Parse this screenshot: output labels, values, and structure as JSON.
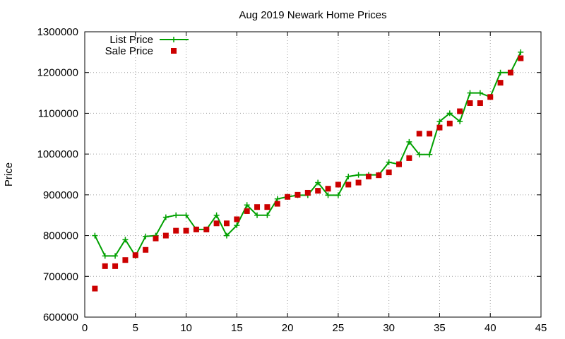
{
  "chart_data": {
    "type": "line",
    "title": "Aug 2019 Newark Home Prices",
    "xlabel": "",
    "ylabel": "Price",
    "xlim": [
      0,
      45
    ],
    "ylim": [
      600000,
      1300000
    ],
    "x_ticks": [
      0,
      5,
      10,
      15,
      20,
      25,
      30,
      35,
      40,
      45
    ],
    "y_ticks": [
      600000,
      700000,
      800000,
      900000,
      1000000,
      1100000,
      1200000,
      1300000
    ],
    "grid": true,
    "legend_position": "top-left",
    "series": [
      {
        "name": "List Price",
        "style": "line-plus",
        "color": "#00a000",
        "x": [
          1,
          2,
          3,
          4,
          5,
          6,
          7,
          8,
          9,
          10,
          11,
          12,
          13,
          14,
          15,
          16,
          17,
          18,
          19,
          20,
          21,
          22,
          23,
          24,
          25,
          26,
          27,
          28,
          29,
          30,
          31,
          32,
          33,
          34,
          35,
          36,
          37,
          38,
          39,
          40,
          41,
          42,
          43
        ],
        "y": [
          800000,
          750000,
          750000,
          790000,
          750000,
          798000,
          800000,
          845000,
          850000,
          850000,
          815000,
          815000,
          850000,
          800000,
          825000,
          875000,
          850000,
          850000,
          890000,
          895000,
          899000,
          899000,
          930000,
          899000,
          899000,
          945000,
          949000,
          949000,
          949000,
          980000,
          975000,
          1030000,
          999000,
          999000,
          1080000,
          1100000,
          1080000,
          1150000,
          1150000,
          1140000,
          1200000,
          1200000,
          1250000
        ]
      },
      {
        "name": "Sale Price",
        "style": "square-points",
        "color": "#cc0000",
        "x": [
          1,
          2,
          3,
          4,
          5,
          6,
          7,
          8,
          9,
          10,
          11,
          12,
          13,
          14,
          15,
          16,
          17,
          18,
          19,
          20,
          21,
          22,
          23,
          24,
          25,
          26,
          27,
          28,
          29,
          30,
          31,
          32,
          33,
          34,
          35,
          36,
          37,
          38,
          39,
          40,
          41,
          42,
          43
        ],
        "y": [
          670000,
          725000,
          725000,
          740000,
          752000,
          765000,
          793000,
          800000,
          812000,
          812000,
          815000,
          815000,
          830000,
          830000,
          840000,
          860000,
          870000,
          870000,
          878000,
          895000,
          900000,
          905000,
          910000,
          915000,
          925000,
          925000,
          930000,
          945000,
          948000,
          955000,
          975000,
          990000,
          1050000,
          1050000,
          1065000,
          1075000,
          1105000,
          1125000,
          1125000,
          1140000,
          1175000,
          1200000,
          1235000
        ]
      }
    ]
  }
}
